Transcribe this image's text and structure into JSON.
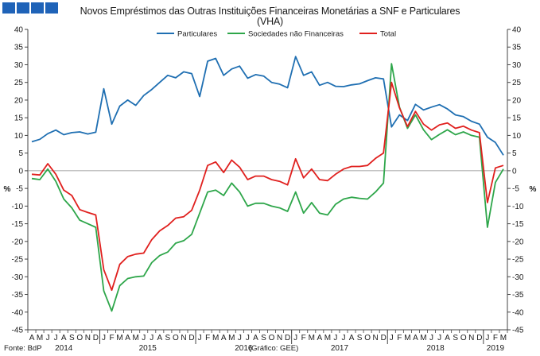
{
  "logo": {
    "icon": "bdp-logo-icon",
    "color": "#1f63b8"
  },
  "chart_data": {
    "type": "line",
    "title_line1": "Novos Empréstimos das Outras Instituições Financeiras Monetárias a SNF e Particulares",
    "title_line2": "(VHA)",
    "ylabel_left": "%",
    "ylabel_right": "%",
    "ylim": [
      -45,
      40
    ],
    "yticks": [
      40,
      35,
      30,
      25,
      20,
      15,
      10,
      5,
      0,
      -5,
      -10,
      -15,
      -20,
      -25,
      -30,
      -35,
      -40,
      -45
    ],
    "grid": false,
    "legend_position": "top",
    "months": [
      "A",
      "M",
      "J",
      "J",
      "A",
      "S",
      "O",
      "N",
      "D",
      "J",
      "F",
      "M",
      "A",
      "M",
      "J",
      "J",
      "A",
      "S",
      "O",
      "N",
      "D",
      "J",
      "F",
      "M",
      "A",
      "M",
      "J",
      "J",
      "A",
      "S",
      "O",
      "N",
      "D",
      "J",
      "F",
      "M",
      "A",
      "M",
      "J",
      "J",
      "A",
      "S",
      "O",
      "N",
      "D",
      "J",
      "F",
      "M",
      "A",
      "M",
      "J",
      "J",
      "A",
      "S",
      "O",
      "N",
      "D",
      "J",
      "F",
      "M"
    ],
    "years": [
      {
        "label": "2014",
        "start": 0,
        "count": 9
      },
      {
        "label": "2015",
        "start": 9,
        "count": 12
      },
      {
        "label": "2016",
        "start": 21,
        "count": 12
      },
      {
        "label": "2017",
        "start": 33,
        "count": 12
      },
      {
        "label": "2018",
        "start": 45,
        "count": 12
      },
      {
        "label": "2019",
        "start": 57,
        "count": 3
      }
    ],
    "series": [
      {
        "name": "Particulares",
        "color": "#1f6fb2",
        "values": [
          8.2,
          8.9,
          10.5,
          11.5,
          10.2,
          10.8,
          11.0,
          10.4,
          10.9,
          23.2,
          13.2,
          18.3,
          20.0,
          18.5,
          21.3,
          23.0,
          25.0,
          27.0,
          26.3,
          28.0,
          27.5,
          21.0,
          31.0,
          31.8,
          27.0,
          28.8,
          29.6,
          26.2,
          27.2,
          26.8,
          25.0,
          24.5,
          23.5,
          32.3,
          27.0,
          28.0,
          24.2,
          25.0,
          23.9,
          23.8,
          24.3,
          24.6,
          25.5,
          26.3,
          26.0,
          12.4,
          15.8,
          14.2,
          18.8,
          17.2,
          18.0,
          18.7,
          17.5,
          15.8,
          15.3,
          14.0,
          13.2,
          9.5,
          8.0,
          4.4
        ]
      },
      {
        "name": "Sociedades não Financeiras",
        "color": "#2ea64a",
        "values": [
          -2.2,
          -2.5,
          0.5,
          -3.0,
          -8.0,
          -10.5,
          -14.0,
          -15.0,
          -16.0,
          -34.0,
          -39.7,
          -32.5,
          -30.5,
          -30.0,
          -29.8,
          -26.0,
          -24.0,
          -23.0,
          -20.5,
          -19.8,
          -18.0,
          -12.0,
          -6.0,
          -5.5,
          -7.0,
          -3.5,
          -6.0,
          -10.0,
          -9.2,
          -9.2,
          -10.0,
          -10.5,
          -11.5,
          -6.0,
          -12.0,
          -9.0,
          -12.0,
          -12.5,
          -9.5,
          -8.0,
          -7.5,
          -7.8,
          -8.0,
          -6.0,
          -3.5,
          30.3,
          18.0,
          12.0,
          15.8,
          11.6,
          8.8,
          10.3,
          11.6,
          10.2,
          11.0,
          10.0,
          9.5,
          -16.0,
          -3.3,
          0.5
        ]
      },
      {
        "name": "Total",
        "color": "#e0201e",
        "values": [
          -1.0,
          -1.2,
          2.0,
          -1.0,
          -5.5,
          -7.0,
          -11.0,
          -11.8,
          -12.5,
          -28.0,
          -33.8,
          -26.5,
          -24.3,
          -23.6,
          -23.3,
          -19.5,
          -17.0,
          -15.5,
          -13.4,
          -13.0,
          -11.2,
          -5.5,
          1.5,
          2.5,
          -0.5,
          3.0,
          1.0,
          -2.5,
          -1.5,
          -1.5,
          -2.5,
          -3.0,
          -4.0,
          3.4,
          -2.0,
          0.5,
          -2.5,
          -2.8,
          -1.0,
          0.5,
          1.2,
          1.2,
          1.5,
          3.5,
          5.0,
          25.0,
          17.8,
          12.5,
          16.8,
          13.2,
          11.5,
          13.0,
          13.5,
          12.0,
          12.6,
          11.5,
          10.8,
          -9.0,
          0.8,
          1.5
        ]
      }
    ],
    "source_left": "Fonte: BdP",
    "source_right": "(Gráfico: GEE)"
  }
}
